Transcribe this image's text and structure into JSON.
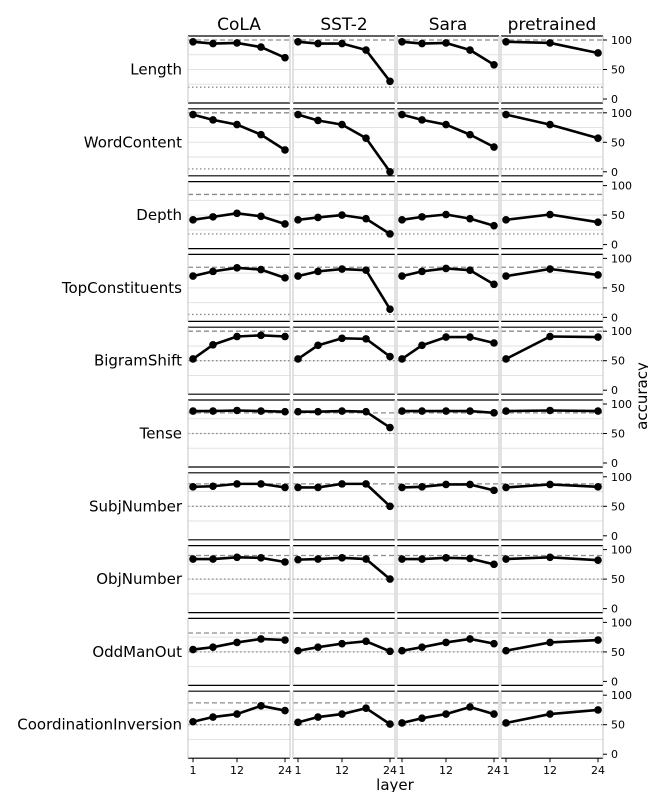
{
  "chart_data": {
    "type": "line",
    "layout": "small-multiples grid",
    "title": "",
    "xlabel": "layer",
    "ylabel": "accuracy",
    "columns": [
      "CoLA",
      "SST-2",
      "Sara",
      "pretrained"
    ],
    "rows": [
      "Length",
      "WordContent",
      "Depth",
      "TopConstituents",
      "BigramShift",
      "Tense",
      "SubjNumber",
      "ObjNumber",
      "OddManOut",
      "CoordinationInversion"
    ],
    "x_ticks": [
      1,
      12,
      24
    ],
    "y_ticks": [
      0,
      50,
      100
    ],
    "ylim": [
      0,
      100
    ],
    "xlim": [
      1,
      24
    ],
    "finetuned_x": [
      1,
      6,
      12,
      18,
      24
    ],
    "pretrained_x": [
      1,
      12,
      24
    ],
    "upper_reference_style": "dashed gray",
    "lower_reference_style": "dotted gray",
    "grid": "horizontal light gray",
    "panels": [
      {
        "task": "Length",
        "upper_ref": 100,
        "lower_ref": 20,
        "CoLA": [
          97,
          94,
          95,
          88,
          70
        ],
        "SST-2": [
          97,
          94,
          94,
          83,
          30
        ],
        "Sara": [
          97,
          94,
          95,
          83,
          58
        ],
        "pretrained": [
          97,
          95,
          78
        ]
      },
      {
        "task": "WordContent",
        "upper_ref": 100,
        "lower_ref": 5,
        "CoLA": [
          97,
          88,
          80,
          63,
          37
        ],
        "SST-2": [
          97,
          87,
          80,
          57,
          0
        ],
        "Sara": [
          97,
          88,
          80,
          63,
          42
        ],
        "pretrained": [
          97,
          80,
          57
        ]
      },
      {
        "task": "Depth",
        "upper_ref": 85,
        "lower_ref": 18,
        "CoLA": [
          42,
          47,
          53,
          48,
          35
        ],
        "SST-2": [
          42,
          46,
          50,
          44,
          18
        ],
        "Sara": [
          42,
          47,
          51,
          44,
          32
        ],
        "pretrained": [
          42,
          51,
          38
        ]
      },
      {
        "task": "TopConstituents",
        "upper_ref": 85,
        "lower_ref": 5,
        "CoLA": [
          70,
          78,
          84,
          81,
          67
        ],
        "SST-2": [
          70,
          78,
          82,
          80,
          14
        ],
        "Sara": [
          70,
          78,
          83,
          80,
          56
        ],
        "pretrained": [
          70,
          82,
          72
        ]
      },
      {
        "task": "BigramShift",
        "upper_ref": 100,
        "lower_ref": 50,
        "CoLA": [
          53,
          77,
          91,
          93,
          91
        ],
        "SST-2": [
          53,
          76,
          88,
          87,
          57
        ],
        "Sara": [
          53,
          76,
          90,
          90,
          80
        ],
        "pretrained": [
          53,
          91,
          90
        ]
      },
      {
        "task": "Tense",
        "upper_ref": 85,
        "lower_ref": 50,
        "CoLA": [
          88,
          88,
          89,
          88,
          87
        ],
        "SST-2": [
          87,
          87,
          88,
          87,
          60
        ],
        "Sara": [
          88,
          88,
          88,
          88,
          85
        ],
        "pretrained": [
          88,
          89,
          88
        ]
      },
      {
        "task": "SubjNumber",
        "upper_ref": 88,
        "lower_ref": 50,
        "CoLA": [
          83,
          84,
          88,
          88,
          82
        ],
        "SST-2": [
          82,
          82,
          88,
          88,
          50
        ],
        "Sara": [
          82,
          83,
          87,
          87,
          77
        ],
        "pretrained": [
          82,
          87,
          83
        ]
      },
      {
        "task": "ObjNumber",
        "upper_ref": 90,
        "lower_ref": 50,
        "CoLA": [
          84,
          84,
          87,
          86,
          79
        ],
        "SST-2": [
          83,
          84,
          86,
          84,
          50
        ],
        "Sara": [
          84,
          84,
          86,
          85,
          75
        ],
        "pretrained": [
          84,
          87,
          82
        ]
      },
      {
        "task": "OddManOut",
        "upper_ref": 82,
        "lower_ref": 50,
        "CoLA": [
          54,
          58,
          66,
          72,
          70
        ],
        "SST-2": [
          52,
          58,
          64,
          68,
          51
        ],
        "Sara": [
          52,
          58,
          66,
          72,
          64
        ],
        "pretrained": [
          52,
          66,
          70
        ]
      },
      {
        "task": "CoordinationInversion",
        "upper_ref": 87,
        "lower_ref": 50,
        "CoLA": [
          55,
          63,
          68,
          82,
          74
        ],
        "SST-2": [
          54,
          63,
          68,
          78,
          51
        ],
        "Sara": [
          53,
          61,
          68,
          80,
          68
        ],
        "pretrained": [
          53,
          68,
          75
        ]
      }
    ]
  }
}
